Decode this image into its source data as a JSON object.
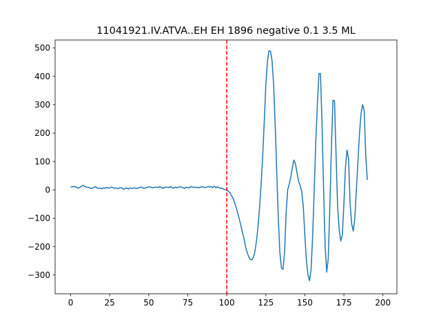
{
  "chart_data": {
    "type": "line",
    "title": "11041921.IV.ATVA..EH EH 1896 negative 0.1 3.5 ML",
    "xlabel": "",
    "ylabel": "",
    "xlim": [
      -9.95,
      208.95
    ],
    "ylim": [
      -366,
      528
    ],
    "grid": false,
    "x_ticks": [
      0,
      25,
      50,
      75,
      100,
      125,
      150,
      175,
      200
    ],
    "x_tick_labels": [
      "0",
      "25",
      "50",
      "75",
      "100",
      "125",
      "150",
      "175",
      "200"
    ],
    "y_ticks": [
      -300,
      -200,
      -100,
      0,
      100,
      200,
      300,
      400,
      500
    ],
    "y_tick_labels": [
      "−300",
      "−200",
      "−100",
      "0",
      "100",
      "200",
      "300",
      "400",
      "500"
    ],
    "line_color": "#1f77b4",
    "marker_color": "#ff0000",
    "vline": {
      "x": 100,
      "style": "dashed"
    },
    "series": [
      {
        "x_start": 0,
        "x_step": 1,
        "values": [
          10,
          11,
          11,
          11,
          8,
          6,
          9,
          13,
          16,
          12,
          10,
          9,
          8,
          5,
          6,
          9,
          11,
          7,
          5,
          6,
          4,
          7,
          5,
          9,
          6,
          7,
          10,
          8,
          6,
          7,
          4,
          6,
          8,
          6,
          2,
          5,
          7,
          3,
          7,
          5,
          6,
          7,
          5,
          6,
          8,
          10,
          8,
          5,
          7,
          9,
          10,
          11,
          7,
          8,
          9,
          10,
          8,
          11,
          9,
          5,
          8,
          10,
          9,
          8,
          12,
          7,
          6,
          10,
          7,
          9,
          11,
          10,
          7,
          5,
          9,
          8,
          7,
          12,
          9,
          10,
          8,
          10,
          7,
          9,
          11,
          10,
          8,
          9,
          12,
          10,
          11,
          8,
          13,
          7,
          11,
          8,
          5,
          6,
          2,
          1,
          0,
          -5,
          -10,
          -20,
          -30,
          -45,
          -62,
          -82,
          -103,
          -125,
          -150,
          -170,
          -200,
          -220,
          -235,
          -245,
          -247,
          -238,
          -218,
          -180,
          -130,
          -60,
          20,
          120,
          240,
          370,
          450,
          490,
          488,
          455,
          370,
          230,
          60,
          -100,
          -220,
          -275,
          -280,
          -220,
          -80,
          0,
          20,
          45,
          80,
          105,
          90,
          60,
          30,
          15,
          -5,
          -60,
          -160,
          -250,
          -300,
          -320,
          -280,
          -160,
          0,
          170,
          300,
          410,
          410,
          230,
          0,
          -200,
          -290,
          -240,
          -60,
          150,
          316,
          314,
          120,
          -60,
          -140,
          -180,
          -160,
          -50,
          80,
          140,
          110,
          -50,
          -120,
          -145,
          -100,
          0,
          100,
          200,
          270,
          300,
          280,
          120,
          35
        ]
      }
    ]
  }
}
